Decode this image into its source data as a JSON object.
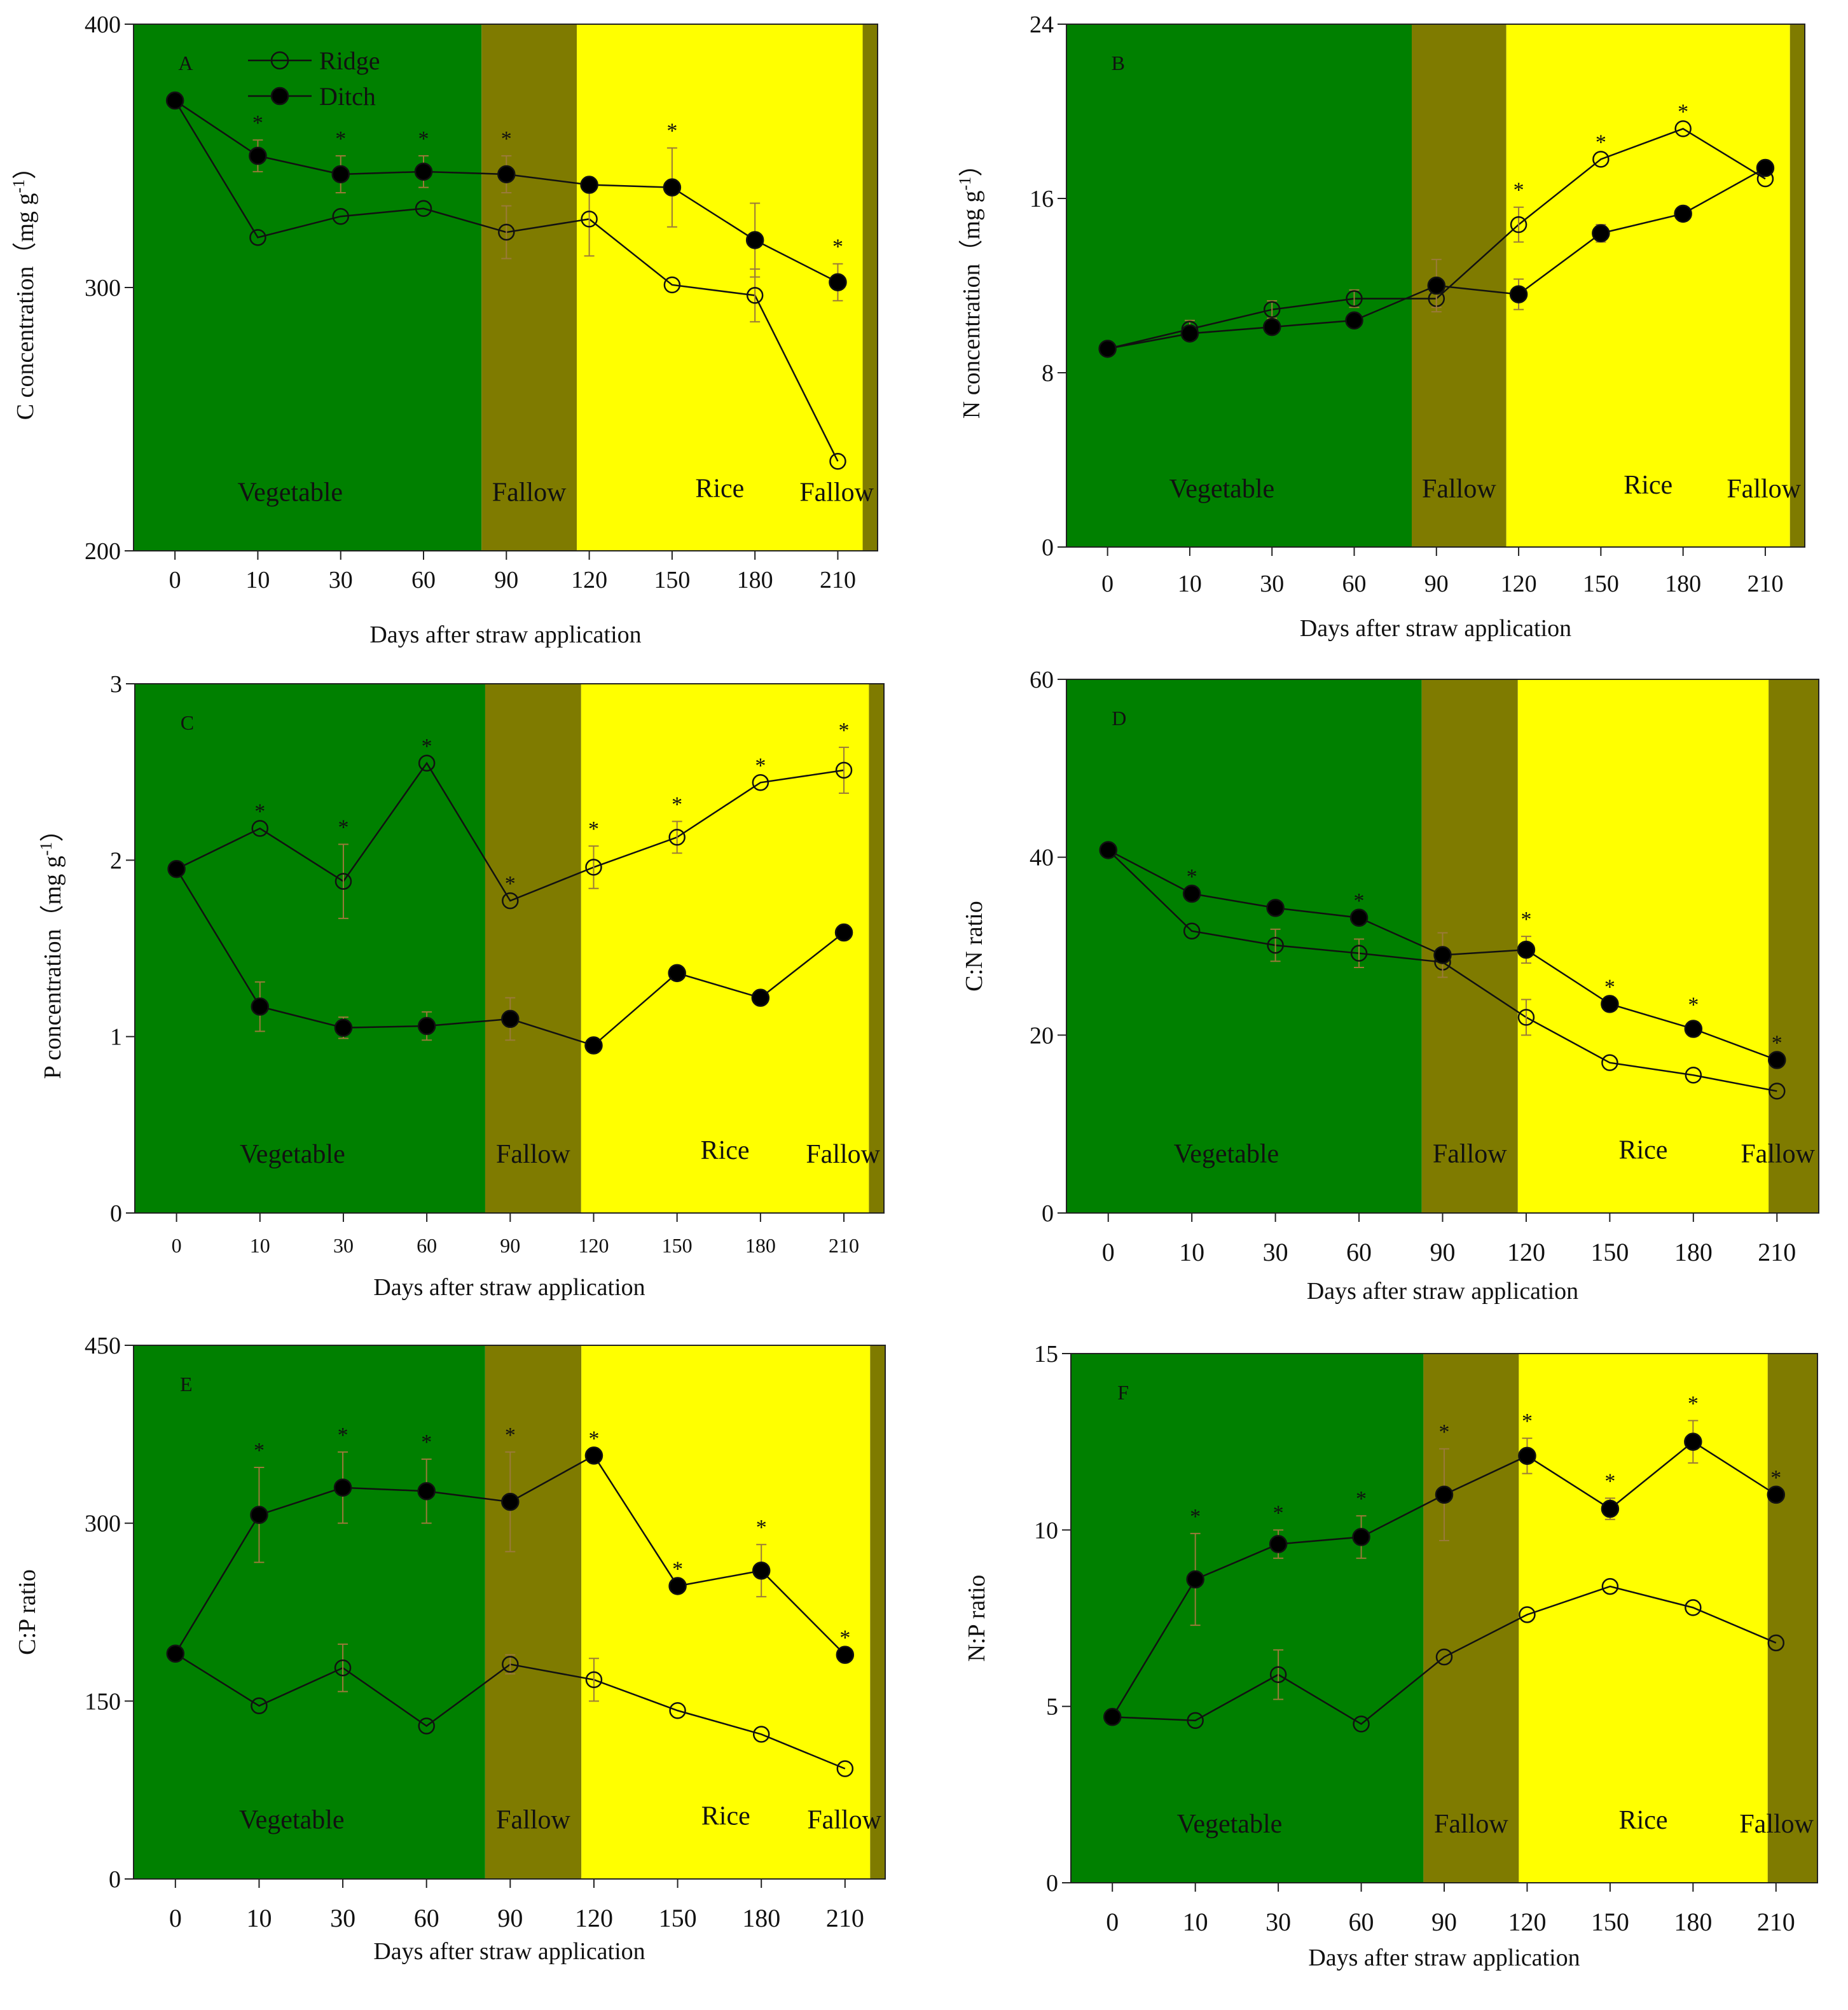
{
  "chart_data": [
    {
      "type": "line",
      "panel": "A",
      "categories": [
        "0",
        "10",
        "30",
        "60",
        "90",
        "120",
        "150",
        "180",
        "210"
      ],
      "xlabel": "Days after straw application",
      "ylabel": "C concentration (mg g⁻¹)",
      "ylabel_main": "C concentration",
      "ylabel_unit": "（mg g",
      "ylabel_sup": "-1",
      "ylabel_close": "）",
      "ylim": [
        200,
        400
      ],
      "yticks": [
        200,
        300,
        400
      ],
      "series": [
        {
          "name": "Ridge",
          "marker": "open",
          "values": [
            371,
            319,
            327,
            330,
            321,
            326,
            301,
            297,
            234
          ],
          "errors": [
            0,
            0,
            0,
            0,
            10,
            14,
            0,
            10,
            0
          ]
        },
        {
          "name": "Ditch",
          "marker": "filled",
          "values": [
            371,
            350,
            343,
            344,
            343,
            339,
            338,
            318,
            302
          ],
          "errors": [
            0,
            6,
            7,
            6,
            7,
            0,
            15,
            14,
            7
          ]
        }
      ],
      "significance": [
        false,
        true,
        true,
        true,
        true,
        false,
        true,
        false,
        true
      ],
      "phases": [
        {
          "label": "Vegetable",
          "start": -0.5,
          "end": 3.7,
          "color": "#008000"
        },
        {
          "label": "Fallow",
          "start": 3.7,
          "end": 4.85,
          "color": "#7f7b00"
        },
        {
          "label": "Rice",
          "start": 4.85,
          "end": 8.3,
          "color": "#ffff00"
        },
        {
          "label": "Fallow",
          "start": 8.3,
          "end": 8.85,
          "color": "#7f7b00"
        }
      ],
      "legend": [
        "Ridge",
        "Ditch"
      ]
    },
    {
      "type": "line",
      "panel": "B",
      "categories": [
        "0",
        "10",
        "30",
        "60",
        "90",
        "120",
        "150",
        "180",
        "210"
      ],
      "xlabel": "Days after straw application",
      "ylabel": "N concentration (mg g⁻¹)",
      "ylabel_main": "N concentration",
      "ylabel_unit": "（mg g",
      "ylabel_sup": "-1",
      "ylabel_close": "）",
      "ylim": [
        0,
        24
      ],
      "yticks": [
        0,
        8,
        16,
        24
      ],
      "series": [
        {
          "name": "Ridge",
          "marker": "open",
          "values": [
            9.1,
            10.0,
            10.9,
            11.4,
            11.4,
            14.8,
            17.8,
            19.2,
            16.9
          ],
          "errors": [
            0,
            0.4,
            0.4,
            0.4,
            0.4,
            0.8,
            0,
            0,
            0
          ]
        },
        {
          "name": "Ditch",
          "marker": "filled",
          "values": [
            9.1,
            9.8,
            10.1,
            10.4,
            12.0,
            11.6,
            14.4,
            15.3,
            17.4
          ],
          "errors": [
            0,
            0,
            0,
            0,
            1.2,
            0.7,
            0.4,
            0,
            0
          ]
        }
      ],
      "significance": [
        false,
        false,
        false,
        false,
        false,
        true,
        true,
        true,
        false
      ],
      "phases": [
        {
          "label": "Vegetable",
          "start": -0.5,
          "end": 3.7,
          "color": "#008000"
        },
        {
          "label": "Fallow",
          "start": 3.7,
          "end": 4.85,
          "color": "#7f7b00"
        },
        {
          "label": "Rice",
          "start": 4.85,
          "end": 8.3,
          "color": "#ffff00"
        },
        {
          "label": "Fallow",
          "start": 8.3,
          "end": 8.85,
          "color": "#7f7b00"
        }
      ]
    },
    {
      "type": "line",
      "panel": "C",
      "categories": [
        "0",
        "10",
        "30",
        "60",
        "90",
        "120",
        "150",
        "180",
        "210"
      ],
      "xlabel": "Days after straw application",
      "ylabel": "P concentration (mg g⁻¹)",
      "ylabel_main": "P concentration",
      "ylabel_unit": "（mg g",
      "ylabel_sup": "-1",
      "ylabel_close": "）",
      "ylim": [
        0,
        3
      ],
      "yticks": [
        0,
        1,
        2,
        3
      ],
      "series": [
        {
          "name": "Ridge",
          "marker": "open",
          "values": [
            1.95,
            2.18,
            1.88,
            2.55,
            1.77,
            1.96,
            2.13,
            2.44,
            2.51
          ],
          "errors": [
            0,
            0,
            0.21,
            0,
            0,
            0.12,
            0.09,
            0,
            0.13
          ]
        },
        {
          "name": "Ditch",
          "marker": "filled",
          "values": [
            1.95,
            1.17,
            1.05,
            1.06,
            1.1,
            0.95,
            1.36,
            1.22,
            1.59
          ],
          "errors": [
            0,
            0.14,
            0.06,
            0.08,
            0.12,
            0,
            0,
            0,
            0
          ]
        }
      ],
      "significance": [
        false,
        true,
        true,
        true,
        true,
        true,
        true,
        true,
        true
      ],
      "phases": [
        {
          "label": "Vegetable",
          "start": -0.5,
          "end": 3.7,
          "color": "#008000"
        },
        {
          "label": "Fallow",
          "start": 3.7,
          "end": 4.85,
          "color": "#7f7b00"
        },
        {
          "label": "Rice",
          "start": 4.85,
          "end": 8.3,
          "color": "#ffff00"
        },
        {
          "label": "Fallow",
          "start": 8.3,
          "end": 8.85,
          "color": "#7f7b00"
        }
      ]
    },
    {
      "type": "line",
      "panel": "D",
      "categories": [
        "0",
        "10",
        "30",
        "60",
        "90",
        "120",
        "150",
        "180",
        "210"
      ],
      "xlabel": "Days after straw application",
      "ylabel": "C:N ratio",
      "ylabel_main": "C:N ratio",
      "ylim": [
        0,
        60
      ],
      "yticks": [
        0,
        20,
        40,
        60
      ],
      "series": [
        {
          "name": "Ridge",
          "marker": "open",
          "values": [
            40.8,
            31.7,
            30.1,
            29.2,
            28.2,
            22.0,
            16.9,
            15.5,
            13.7
          ],
          "errors": [
            0,
            0,
            1.8,
            1.6,
            0,
            2.0,
            0,
            0,
            0
          ]
        },
        {
          "name": "Ditch",
          "marker": "filled",
          "values": [
            40.8,
            35.9,
            34.3,
            33.2,
            29.0,
            29.6,
            23.5,
            20.7,
            17.2
          ],
          "errors": [
            0,
            0,
            0,
            0,
            2.5,
            1.5,
            0,
            0.8,
            0
          ]
        }
      ],
      "significance": [
        false,
        true,
        false,
        true,
        false,
        true,
        true,
        true,
        true
      ],
      "phases": [
        {
          "label": "Vegetable",
          "start": -0.5,
          "end": 3.75,
          "color": "#008000"
        },
        {
          "label": "Fallow",
          "start": 3.75,
          "end": 4.9,
          "color": "#7f7b00"
        },
        {
          "label": "Rice",
          "start": 4.9,
          "end": 7.9,
          "color": "#ffff00"
        },
        {
          "label": "Fallow",
          "start": 7.9,
          "end": 8.5,
          "color": "#7f7b00"
        }
      ]
    },
    {
      "type": "line",
      "panel": "E",
      "categories": [
        "0",
        "10",
        "30",
        "60",
        "90",
        "120",
        "150",
        "180",
        "210"
      ],
      "xlabel": "Days after straw application",
      "ylabel": "C:P ratio",
      "ylabel_main": "C:P ratio",
      "ylim": [
        0,
        450
      ],
      "yticks": [
        0,
        150,
        300,
        450
      ],
      "series": [
        {
          "name": "Ridge",
          "marker": "open",
          "values": [
            190,
            146,
            178,
            129,
            181,
            168,
            142,
            122,
            93
          ],
          "errors": [
            0,
            0,
            20,
            0,
            8,
            18,
            0,
            0,
            0
          ]
        },
        {
          "name": "Ditch",
          "marker": "filled",
          "values": [
            190,
            307,
            330,
            327,
            318,
            357,
            247,
            260,
            189
          ],
          "errors": [
            0,
            40,
            30,
            27,
            42,
            0,
            0,
            22,
            0
          ]
        }
      ],
      "significance": [
        false,
        true,
        true,
        true,
        true,
        true,
        true,
        true,
        true
      ],
      "phases": [
        {
          "label": "Vegetable",
          "start": -0.5,
          "end": 3.7,
          "color": "#008000"
        },
        {
          "label": "Fallow",
          "start": 3.7,
          "end": 4.85,
          "color": "#7f7b00"
        },
        {
          "label": "Rice",
          "start": 4.85,
          "end": 8.3,
          "color": "#ffff00"
        },
        {
          "label": "Fallow",
          "start": 8.3,
          "end": 8.85,
          "color": "#7f7b00"
        }
      ]
    },
    {
      "type": "line",
      "panel": "F",
      "categories": [
        "0",
        "10",
        "30",
        "60",
        "90",
        "120",
        "150",
        "180",
        "210"
      ],
      "xlabel": "Days after straw application",
      "ylabel": "N:P ratio",
      "ylabel_main": "N:P ratio",
      "ylim": [
        0,
        15
      ],
      "yticks": [
        0,
        5,
        10,
        15
      ],
      "series": [
        {
          "name": "Ridge",
          "marker": "open",
          "values": [
            4.7,
            4.6,
            5.9,
            4.5,
            6.4,
            7.6,
            8.4,
            7.8,
            6.8
          ],
          "errors": [
            0,
            0,
            0.7,
            0,
            0,
            0,
            0,
            0,
            0
          ]
        },
        {
          "name": "Ditch",
          "marker": "filled",
          "values": [
            4.7,
            8.6,
            9.6,
            9.8,
            11.0,
            12.1,
            10.6,
            12.5,
            11.0
          ],
          "errors": [
            0,
            1.3,
            0.4,
            0.6,
            1.3,
            0.5,
            0.3,
            0.6,
            0
          ]
        }
      ],
      "significance": [
        false,
        true,
        true,
        true,
        true,
        true,
        true,
        true,
        true
      ],
      "phases": [
        {
          "label": "Vegetable",
          "start": -0.5,
          "end": 3.75,
          "color": "#008000"
        },
        {
          "label": "Fallow",
          "start": 3.75,
          "end": 4.9,
          "color": "#7f7b00"
        },
        {
          "label": "Rice",
          "start": 4.9,
          "end": 7.9,
          "color": "#ffff00"
        },
        {
          "label": "Fallow",
          "start": 7.9,
          "end": 8.5,
          "color": "#7f7b00"
        }
      ]
    }
  ]
}
